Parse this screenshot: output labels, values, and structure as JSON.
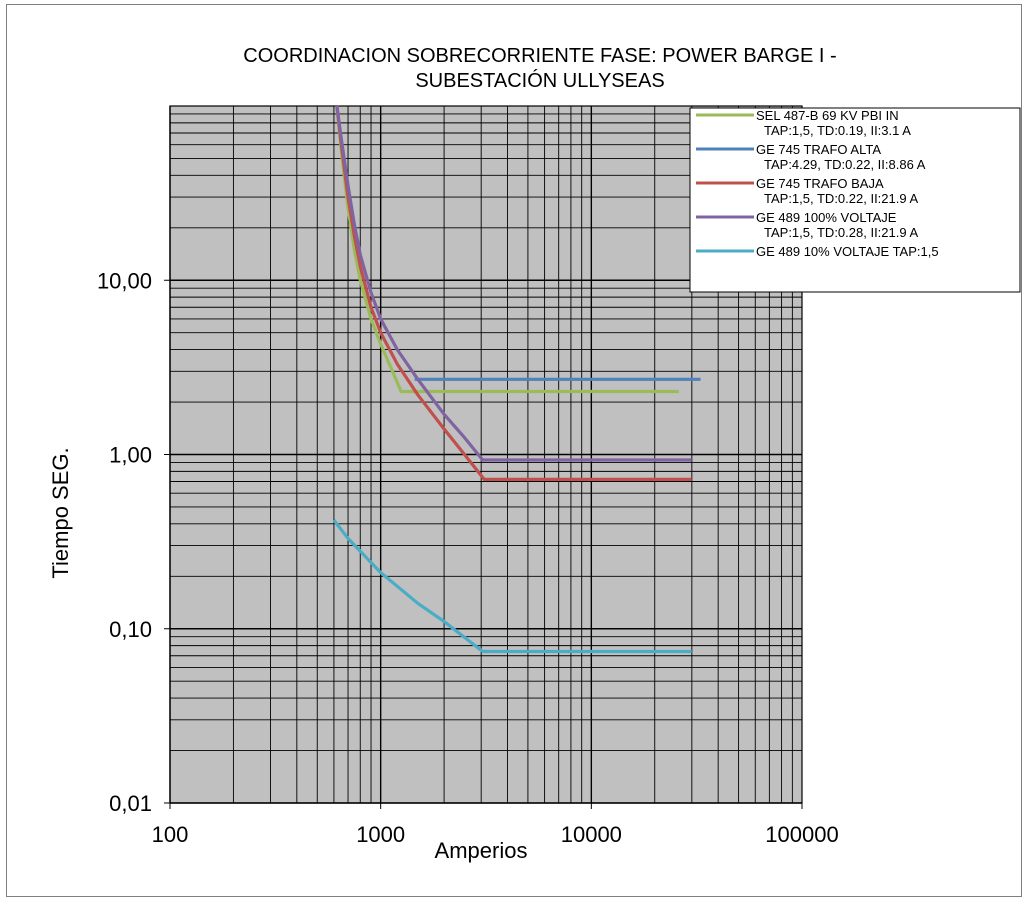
{
  "chart_data": {
    "type": "line",
    "title_lines": [
      "COORDINACION SOBRECORRIENTE FASE: POWER BARGE I  -",
      "SUBESTACIÓN ULLYSEAS"
    ],
    "xlabel": "Amperios",
    "ylabel": "Tiempo SEG.",
    "x_scale": "log",
    "y_scale": "log",
    "xlim": [
      100,
      100000
    ],
    "ylim": [
      0.01,
      100
    ],
    "x_ticks": [
      {
        "value": 100,
        "label": "100"
      },
      {
        "value": 1000,
        "label": "1000"
      },
      {
        "value": 10000,
        "label": "10000"
      },
      {
        "value": 100000,
        "label": "100000"
      }
    ],
    "y_ticks": [
      {
        "value": 0.01,
        "label": "0,01"
      },
      {
        "value": 0.1,
        "label": "0,10"
      },
      {
        "value": 1,
        "label": "1,00"
      },
      {
        "value": 10,
        "label": "10,00"
      }
    ],
    "plot_background": "#c0c0c0",
    "grid": true,
    "legend_position": "top-right",
    "series": [
      {
        "name": "SEL 487-B  69 KV PBI IN TAP:1,5, TD:0.19, II:3.1 A",
        "legend_lines": [
          "SEL 487-B  69 KV PBI IN",
          "TAP:1,5, TD:0.19, II:3.1 A"
        ],
        "color": "#9bbb59",
        "x": [
          620,
          650,
          700,
          750,
          800,
          900,
          1000,
          1100,
          1250,
          2000,
          5000,
          26000
        ],
        "y": [
          110,
          55,
          26,
          15,
          10,
          6,
          4.3,
          3.3,
          2.3,
          2.3,
          2.3,
          2.3
        ]
      },
      {
        "name": "GE 745 TRAFO ALTA TAP:4.29, TD:0.22, II:8.86 A",
        "legend_lines": [
          "GE 745 TRAFO ALTA",
          "TAP:4.29, TD:0.22, II:8.86 A"
        ],
        "color": "#4f81bd",
        "x": [
          1450,
          3000,
          10000,
          33000
        ],
        "y": [
          2.7,
          2.7,
          2.7,
          2.7
        ]
      },
      {
        "name": "GE 745 TRAFO BAJA TAP:1,5, TD:0.22, II:21.9 A",
        "legend_lines": [
          "GE 745 TRAFO BAJA",
          "TAP:1,5, TD:0.22, II:21.9 A"
        ],
        "color": "#c0504d",
        "x": [
          620,
          650,
          700,
          750,
          800,
          900,
          1000,
          1200,
          1500,
          2000,
          2500,
          3100,
          10000,
          30000
        ],
        "y": [
          110,
          60,
          30,
          18,
          12,
          7,
          5,
          3.3,
          2.2,
          1.4,
          1.0,
          0.72,
          0.72,
          0.72
        ]
      },
      {
        "name": "GE 489 100% VOLTAJE TAP:1,5, TD:0.28, II:21.9 A",
        "legend_lines": [
          "GE 489 100% VOLTAJE",
          "TAP:1,5, TD:0.28, II:21.9 A"
        ],
        "color": "#8064a2",
        "x": [
          620,
          650,
          700,
          750,
          800,
          900,
          1000,
          1200,
          1500,
          2000,
          2500,
          3050,
          10000,
          30000
        ],
        "y": [
          110,
          65,
          35,
          21,
          14,
          8.5,
          6,
          4,
          2.7,
          1.7,
          1.25,
          0.93,
          0.93,
          0.93
        ]
      },
      {
        "name": "GE 489 10% VOLTAJE TAP:1,5",
        "legend_lines": [
          "GE 489 10% VOLTAJE TAP:1,5"
        ],
        "color": "#4bacc6",
        "x": [
          600,
          700,
          1000,
          1500,
          2000,
          3050,
          10000,
          30000
        ],
        "y": [
          0.42,
          0.33,
          0.21,
          0.14,
          0.11,
          0.074,
          0.074,
          0.074
        ]
      }
    ]
  }
}
